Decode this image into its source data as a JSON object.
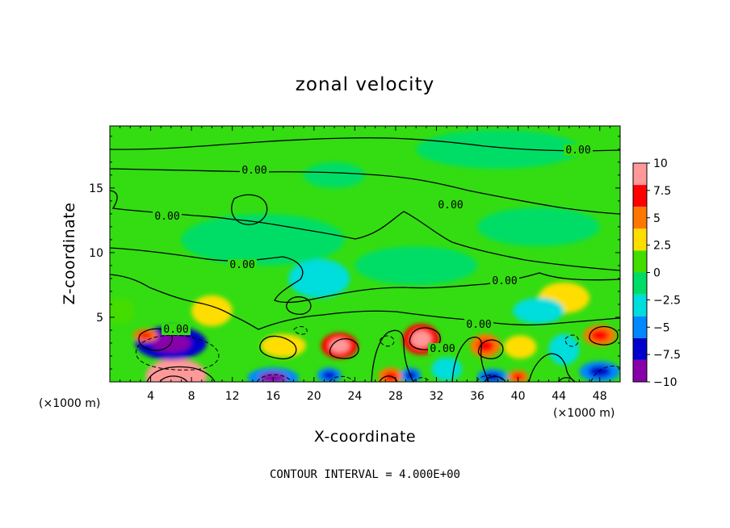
{
  "chart_data": {
    "type": "heatmap",
    "title": "zonal velocity",
    "xlabel": "X-coordinate",
    "ylabel": "Z-coordinate",
    "x_unit_note": "(×1000 m)",
    "x_unit_note_right": "(×1000 m)",
    "xlim": [
      0,
      50
    ],
    "ylim": [
      0,
      19.8
    ],
    "x_ticks": [
      4,
      8,
      12,
      16,
      20,
      24,
      28,
      32,
      36,
      40,
      44,
      48
    ],
    "y_ticks": [
      5,
      10,
      15
    ],
    "colorbar": {
      "range": [
        -10,
        10
      ],
      "ticks": [
        "10",
        "7.5",
        "5",
        "2.5",
        "0",
        "−2.5",
        "−5",
        "−7.5",
        "−10"
      ],
      "colors": [
        "#ff9999",
        "#ff0000",
        "#ff7700",
        "#ffdd00",
        "#44dd00",
        "#00dd66",
        "#00dddd",
        "#0088ff",
        "#0000cc",
        "#8800aa"
      ]
    },
    "contour_labels": [
      "0.00",
      "0.00",
      "0.00",
      "0.00",
      "0.00",
      "0.00",
      "0.00",
      "0.00",
      "0.00"
    ],
    "footnote": "CONTOUR INTERVAL = 4.000E+00",
    "features": [
      {
        "x": 6.5,
        "z": 0.4,
        "value": 9.5,
        "r": [
          3.0,
          1.4
        ]
      },
      {
        "x": 6.0,
        "z": 3.0,
        "value": -6.5,
        "r": [
          3.5,
          1.3
        ]
      },
      {
        "x": 3.5,
        "z": 3.6,
        "value": 5.0,
        "r": [
          1.2,
          0.5
        ]
      },
      {
        "x": 16.0,
        "z": 0.3,
        "value": -5.5,
        "r": [
          2.5,
          0.8
        ]
      },
      {
        "x": 17.0,
        "z": 2.8,
        "value": 3.5,
        "r": [
          2.2,
          0.9
        ]
      },
      {
        "x": 22.5,
        "z": 2.8,
        "value": 7.0,
        "r": [
          1.8,
          1.0
        ]
      },
      {
        "x": 27.5,
        "z": 0.4,
        "value": 5.0,
        "r": [
          1.2,
          0.7
        ]
      },
      {
        "x": 30.5,
        "z": 3.3,
        "value": 7.5,
        "r": [
          1.8,
          1.2
        ]
      },
      {
        "x": 36.8,
        "z": 2.8,
        "value": 5.0,
        "r": [
          1.5,
          0.9
        ]
      },
      {
        "x": 40.2,
        "z": 2.7,
        "value": 3.0,
        "r": [
          1.6,
          0.9
        ]
      },
      {
        "x": 48.0,
        "z": 3.6,
        "value": 5.0,
        "r": [
          1.6,
          0.8
        ]
      },
      {
        "x": 40.0,
        "z": 0.4,
        "value": 5.0,
        "r": [
          1.0,
          0.5
        ]
      },
      {
        "x": 21.5,
        "z": 0.5,
        "value": -5.0,
        "r": [
          1.2,
          0.6
        ]
      },
      {
        "x": 29.5,
        "z": 0.5,
        "value": -5.0,
        "r": [
          1.0,
          0.6
        ]
      },
      {
        "x": 37.5,
        "z": 0.4,
        "value": -5.0,
        "r": [
          1.5,
          0.6
        ]
      },
      {
        "x": 48.0,
        "z": 0.8,
        "value": -5.0,
        "r": [
          2.0,
          0.8
        ]
      },
      {
        "x": 33.0,
        "z": 1.0,
        "value": -2.5,
        "r": [
          1.5,
          0.9
        ]
      },
      {
        "x": 44.5,
        "z": 2.5,
        "value": -3.0,
        "r": [
          1.5,
          1.2
        ]
      },
      {
        "x": 10.0,
        "z": 5.5,
        "value": 2.5,
        "r": [
          2.0,
          1.2
        ]
      },
      {
        "x": 1.0,
        "z": 5.5,
        "value": 2.0,
        "r": [
          1.5,
          1.0
        ]
      },
      {
        "x": 44.5,
        "z": 6.5,
        "value": 2.5,
        "r": [
          2.5,
          1.2
        ]
      },
      {
        "x": 42.0,
        "z": 5.5,
        "value": -2.5,
        "r": [
          2.5,
          1.0
        ]
      },
      {
        "x": 30.0,
        "z": 9.0,
        "value": -1.8,
        "r": [
          6.0,
          1.5
        ]
      },
      {
        "x": 20.5,
        "z": 8.0,
        "value": -2.0,
        "r": [
          3.0,
          1.5
        ]
      },
      {
        "x": 22.0,
        "z": 16.0,
        "value": -1.3,
        "r": [
          3.0,
          1.0
        ]
      },
      {
        "x": 42.0,
        "z": 12.0,
        "value": -1.3,
        "r": [
          6.0,
          1.5
        ]
      },
      {
        "x": 15.0,
        "z": 11.0,
        "value": -1.2,
        "r": [
          8.0,
          2.0
        ]
      },
      {
        "x": 38.0,
        "z": 18.0,
        "value": -0.8,
        "r": [
          8.0,
          1.5
        ]
      }
    ]
  }
}
